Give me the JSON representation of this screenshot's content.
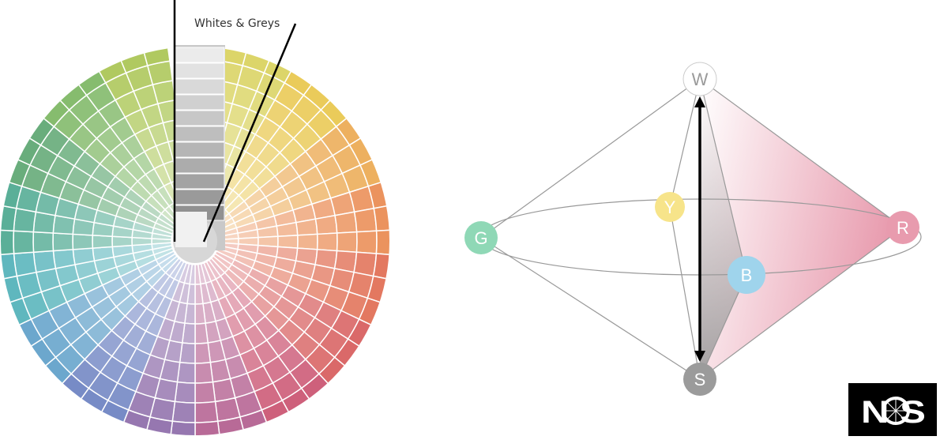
{
  "fan": {
    "label": "Whites & Greys",
    "hue_colors": [
      "#d8d15a",
      "#e8c64a",
      "#eba84f",
      "#e9884e",
      "#e06b50",
      "#d65a5a",
      "#c9506e",
      "#b15b8d",
      "#8c6aa8",
      "#6a7fc0",
      "#5d9ec8",
      "#4fb0b8",
      "#4aa78e",
      "#5aa56f",
      "#7ab560",
      "#a8c450"
    ]
  },
  "diagram": {
    "nodes": [
      {
        "id": "W",
        "label": "W",
        "color": "#ffffff",
        "text_color": "#9a9a9a"
      },
      {
        "id": "Y",
        "label": "Y",
        "color": "#f7e48a",
        "text_color": "#ffffff"
      },
      {
        "id": "G",
        "label": "G",
        "color": "#8fd8b6",
        "text_color": "#ffffff"
      },
      {
        "id": "B",
        "label": "B",
        "color": "#9fd4ec",
        "text_color": "#ffffff"
      },
      {
        "id": "R",
        "label": "R",
        "color": "#e89bae",
        "text_color": "#ffffff"
      },
      {
        "id": "S",
        "label": "S",
        "color": "#9b9b9b",
        "text_color": "#ffffff"
      }
    ]
  },
  "logo": {
    "text": "NCS"
  }
}
